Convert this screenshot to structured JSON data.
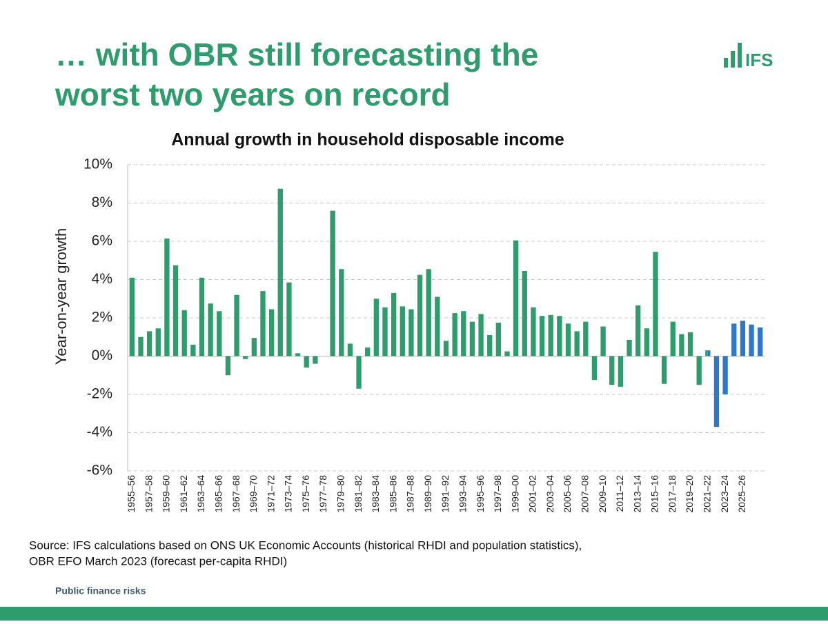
{
  "title": [
    "… with OBR still forecasting the",
    "worst two years on record"
  ],
  "logo": "IFS",
  "footer": "Public finance risks",
  "chart_data": {
    "type": "bar",
    "title": "Annual growth in household disposable income",
    "y_label": "Year-on-year growth",
    "source": [
      "Source: IFS calculations based on ONS UK Economic Accounts (historical RHDI and population statistics),",
      "OBR EFO March 2023 (forecast per-capita RHDI)"
    ],
    "categories": [
      "1955–56",
      null,
      "1957–58",
      null,
      "1959–60",
      null,
      "1961–62",
      null,
      "1963–64",
      null,
      "1965–66",
      null,
      "1967–68",
      null,
      "1969–70",
      null,
      "1971–72",
      null,
      "1973–74",
      null,
      "1975–76",
      null,
      "1977–78",
      null,
      "1979–80",
      null,
      "1981–82",
      null,
      "1983–84",
      null,
      "1985–86",
      null,
      "1987–88",
      null,
      "1989–90",
      null,
      "1991–92",
      null,
      "1993–94",
      null,
      "1995–96",
      null,
      "1997–98",
      null,
      "1999–00",
      null,
      "2001–02",
      null,
      "2003–04",
      null,
      "2005–06",
      null,
      "2007–08",
      null,
      "2009–10",
      null,
      "2011–12",
      null,
      "2013–14",
      null,
      "2015–16",
      null,
      "2017–18",
      null,
      "2019–20",
      null,
      "2021–22",
      null,
      "2023–24",
      null,
      "2025–26",
      null,
      null
    ],
    "series": [
      {
        "color": "#2e9c6c",
        "values": [
          4.1,
          1.0,
          1.3,
          1.45,
          6.15,
          4.75,
          2.4,
          0.6,
          4.1,
          2.75,
          2.35,
          -1.0,
          3.2,
          -0.15,
          0.95,
          3.4,
          2.45,
          8.75,
          3.85,
          0.15,
          -0.6,
          -0.4,
          0,
          7.6,
          4.55,
          0.65,
          -1.7,
          0.45,
          3.0,
          2.55,
          3.3,
          2.6,
          2.45,
          4.25,
          4.55,
          3.1,
          0.8,
          2.25,
          2.35,
          1.8,
          2.2,
          1.1,
          1.75,
          0.25,
          6.05,
          4.45,
          2.55,
          2.1,
          2.15,
          2.1,
          1.7,
          1.3,
          1.8,
          -1.25,
          1.55,
          -1.5,
          -1.6,
          0.85,
          2.65,
          1.45,
          5.45,
          -1.45,
          1.8,
          1.15,
          1.25,
          -1.5,
          0.3,
          null,
          null,
          null,
          null,
          null,
          null
        ]
      },
      {
        "color": "#2f78c8",
        "values": [
          null,
          null,
          null,
          null,
          null,
          null,
          null,
          null,
          null,
          null,
          null,
          null,
          null,
          null,
          null,
          null,
          null,
          null,
          null,
          null,
          null,
          null,
          null,
          null,
          null,
          null,
          null,
          null,
          null,
          null,
          null,
          null,
          null,
          null,
          null,
          null,
          null,
          null,
          null,
          null,
          null,
          null,
          null,
          null,
          null,
          null,
          null,
          null,
          null,
          null,
          null,
          null,
          null,
          null,
          null,
          null,
          null,
          null,
          null,
          null,
          null,
          null,
          null,
          null,
          null,
          null,
          0.3,
          -3.7,
          -2.0,
          1.7,
          1.85,
          1.65,
          1.5
        ]
      }
    ],
    "ylim": [
      -6,
      10
    ],
    "yticks": [
      {
        "value": -6,
        "label": "-6%"
      },
      {
        "value": -4,
        "label": "-4%"
      },
      {
        "value": -2,
        "label": "-2%"
      },
      {
        "value": 0,
        "label": "0%"
      },
      {
        "value": 2,
        "label": "2%"
      },
      {
        "value": 4,
        "label": "4%"
      },
      {
        "value": 6,
        "label": "6%"
      },
      {
        "value": 8,
        "label": "8%"
      },
      {
        "value": 10,
        "label": "10%"
      }
    ],
    "grid": true
  }
}
